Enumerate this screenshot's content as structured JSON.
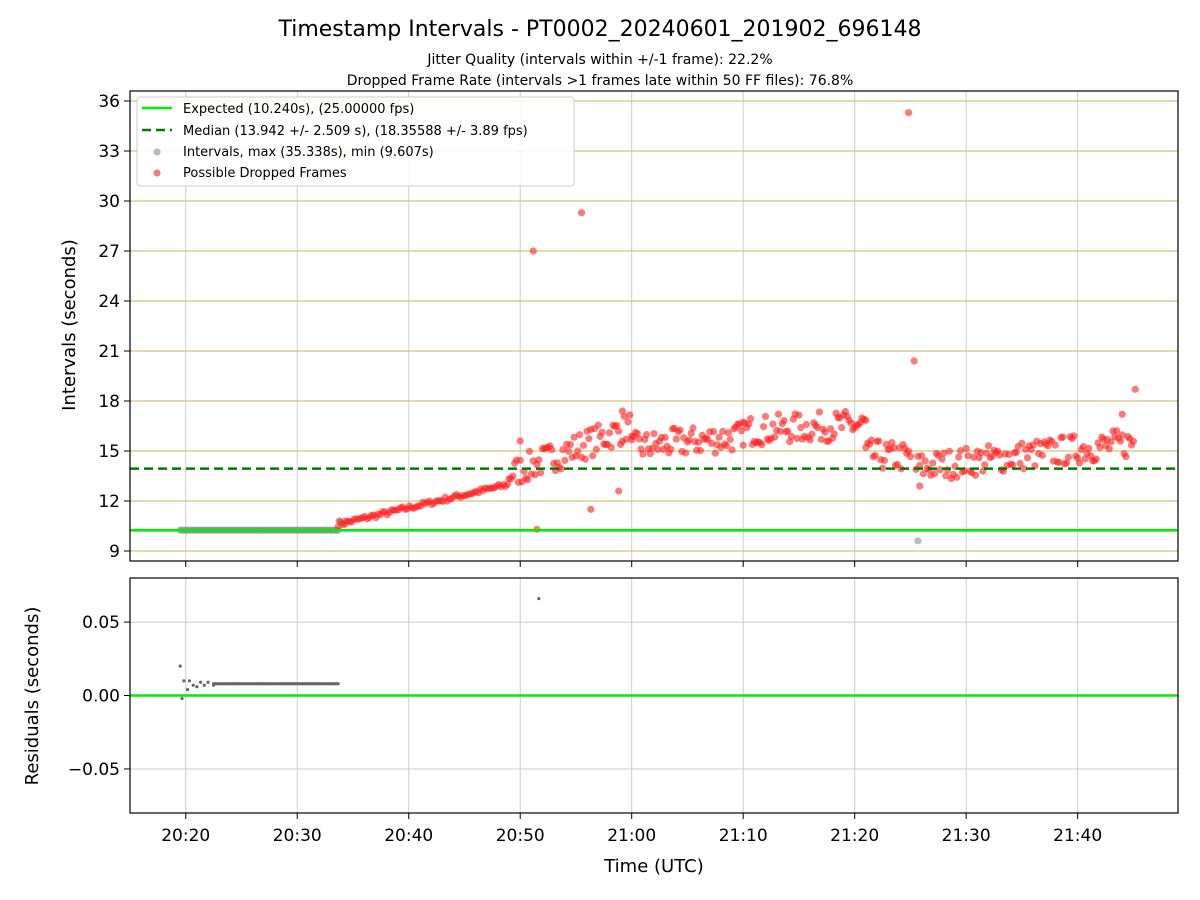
{
  "figure": {
    "title": "Timestamp Intervals - PT0002_20240601_201902_696148",
    "subtitle_1": "Jitter Quality (intervals within +/-1 frame): 22.2%",
    "subtitle_2": "Dropped Frame Rate (intervals >1 frames late within 50 FF files): 76.8%",
    "xlabel": "Time (UTC)"
  },
  "chart_data": [
    {
      "type": "scatter",
      "panel": "intervals",
      "ylabel": "Intervals (seconds)",
      "xlim": [
        "20:15:00",
        "21:49:00"
      ],
      "ylim": [
        8.4,
        36.6
      ],
      "x_ticks": [
        "20:20",
        "20:30",
        "20:40",
        "20:50",
        "21:00",
        "21:10",
        "21:20",
        "21:30",
        "21:40"
      ],
      "y_ticks": [
        9,
        12,
        15,
        18,
        21,
        24,
        27,
        30,
        33,
        36
      ],
      "grid": true,
      "legend_position": "top-left",
      "lines": [
        {
          "name": "Expected (10.240s), (25.00000 fps)",
          "y": 10.24,
          "color": "#00ee00",
          "style": "solid"
        },
        {
          "name": "Median (13.942 +/- 2.509 s), (18.35588 +/- 3.89 fps)",
          "y": 13.942,
          "color": "#007a00",
          "style": "dashed"
        }
      ],
      "series": [
        {
          "name": "Intervals, max (35.338s), min (9.607s)",
          "color": "#8c8c8c",
          "note_gray_run": {
            "start": "20:19:30",
            "end": "20:33:40",
            "y": 10.25
          },
          "points": [
            [
              "20:33:45",
              10.8
            ],
            [
              "20:34:15",
              10.8
            ],
            [
              "21:25:40",
              9.61
            ]
          ]
        },
        {
          "name": "Possible Dropped Frames",
          "color": "#ff2020",
          "trend_segments": [
            {
              "start": "20:33:40",
              "end": "20:49:00",
              "y0": 10.6,
              "y1": 13.0
            },
            {
              "start": "20:49:00",
              "end": "21:00:00",
              "y0": 13.6,
              "y1": 16.5
            },
            {
              "start": "21:00:00",
              "end": "21:10:00",
              "y0": 15.2,
              "y1": 15.9
            },
            {
              "start": "21:10:00",
              "end": "21:21:00",
              "y0": 16.2,
              "y1": 16.6
            },
            {
              "start": "21:21:00",
              "end": "21:25:00",
              "y0": 14.8,
              "y1": 14.6
            },
            {
              "start": "21:25:30",
              "end": "21:45:00",
              "y0": 14.0,
              "y1": 15.5
            }
          ],
          "outliers": [
            [
              "20:51:10",
              27.0
            ],
            [
              "20:55:30",
              29.3
            ],
            [
              "20:51:30",
              10.3
            ],
            [
              "21:24:50",
              35.3
            ],
            [
              "21:25:20",
              20.4
            ],
            [
              "21:45:10",
              18.7
            ],
            [
              "20:56:20",
              11.5
            ],
            [
              "20:58:50",
              12.6
            ],
            [
              "20:59:10",
              17.4
            ],
            [
              "21:25:50",
              12.9
            ],
            [
              "20:50:00",
              15.6
            ],
            [
              "21:44:00",
              17.2
            ]
          ]
        }
      ]
    },
    {
      "type": "scatter",
      "panel": "residuals",
      "ylabel": "Residuals (seconds)",
      "xlim": [
        "20:15:00",
        "21:49:00"
      ],
      "ylim": [
        -0.08,
        0.08
      ],
      "y_ticks": [
        "0.05",
        "0.00",
        "−0.05"
      ],
      "y_tick_values": [
        0.05,
        0.0,
        -0.05
      ],
      "grid": true,
      "zero_line_color": "#00ee00",
      "series": [
        {
          "name": "Residuals",
          "color": "#666666",
          "points": [
            [
              "20:19:30",
              0.02
            ],
            [
              "20:19:40",
              -0.002
            ],
            [
              "20:19:50",
              0.01
            ],
            [
              "20:20:10",
              0.004
            ],
            [
              "20:20:20",
              0.01
            ],
            [
              "20:20:40",
              0.007
            ],
            [
              "20:21:00",
              0.006
            ],
            [
              "20:21:20",
              0.009
            ],
            [
              "20:21:40",
              0.007
            ],
            [
              "20:22:00",
              0.009
            ],
            [
              "20:22:30",
              0.007
            ],
            [
              "20:51:40",
              0.066
            ]
          ],
          "steady_run": {
            "start": "20:22:30",
            "end": "20:33:40",
            "y": 0.008
          }
        }
      ]
    }
  ]
}
